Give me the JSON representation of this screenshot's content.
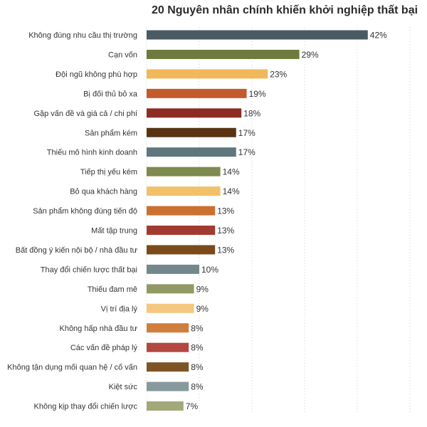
{
  "chart_data": {
    "type": "bar",
    "orientation": "horizontal",
    "title": "20 Nguyên nhân chính khiến khởi nghiệp thất bại",
    "value_suffix": "%",
    "xlim": [
      0,
      50
    ],
    "grid": true,
    "categories": [
      "Không đúng nhu cầu thị trường",
      "Cạn vốn",
      "Đội ngũ không phù hợp",
      "Bị đối thủ bỏ xa",
      "Gặp vấn đề và giá cả / chi phí",
      "Sản phẩm kém",
      "Thiếu mô hình kinh doanh",
      "Tiếp thị yếu kém",
      "Bỏ qua khách hàng",
      "Sản phẩm không đúng tiến độ",
      "Mất tập trung",
      "Bất đồng ý kiến nội bộ / nhà đầu tư",
      "Thay đổi chiến lược thất bại",
      "Thiếu đam mê",
      "Vị trí địa lý",
      "Không hấp nhà đầu tư",
      "Các vấn đề pháp lý",
      "Không tận dụng mối quan hệ / cố vấn",
      "Kiệt sức",
      "Không kịp thay đổi chiến lược"
    ],
    "values": [
      42,
      29,
      23,
      19,
      18,
      17,
      17,
      14,
      14,
      13,
      13,
      13,
      10,
      9,
      9,
      8,
      8,
      8,
      8,
      7
    ],
    "colors": [
      "#4a5a63",
      "#6e7a3e",
      "#f0b858",
      "#c25a2c",
      "#8e2b22",
      "#5a3412",
      "#5e777c",
      "#7e8a4e",
      "#f3c06a",
      "#cc7030",
      "#a33a30",
      "#7a4a1a",
      "#73888c",
      "#919a64",
      "#f4c87e",
      "#d07e3c",
      "#b34840",
      "#7e5424",
      "#869a9e",
      "#a2a878"
    ]
  }
}
